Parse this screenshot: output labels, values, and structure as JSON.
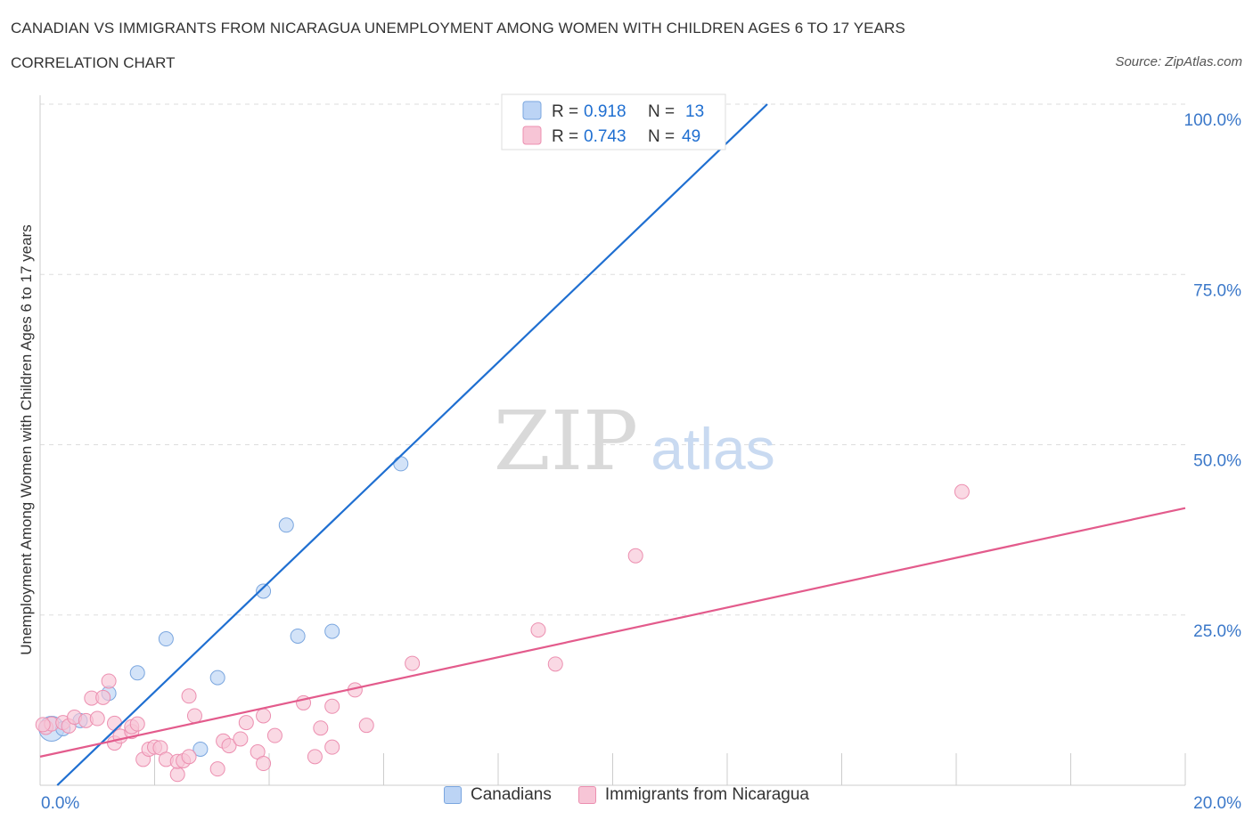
{
  "header": {
    "title": "CANADIAN VS IMMIGRANTS FROM NICARAGUA UNEMPLOYMENT AMONG WOMEN WITH CHILDREN AGES 6 TO 17 YEARS",
    "subtitle": "CORRELATION CHART",
    "source": "Source: ZipAtlas.com"
  },
  "watermark": {
    "zip": "ZIP",
    "atlas": "atlas"
  },
  "colors": {
    "blue": "#1f6fd1",
    "blue_fill": "#bcd4f5",
    "blue_stroke": "#7aa6df",
    "pink": "#e35b8c",
    "pink_fill": "#f7c5d6",
    "pink_stroke": "#ec8fb0",
    "axis_label": "#3b78c9",
    "grid": "#dddddd"
  },
  "stats_box": {
    "rows": [
      {
        "r_label": "R = ",
        "r_value": "0.918",
        "n_label": "N = ",
        "n_value": "13",
        "series": "Canadians"
      },
      {
        "r_label": "R = ",
        "r_value": "0.743",
        "n_label": "N = ",
        "n_value": "49",
        "series": "Immigrants from Nicaragua"
      }
    ]
  },
  "chart_data": {
    "type": "scatter",
    "title": "CANADIAN VS IMMIGRANTS FROM NICARAGUA UNEMPLOYMENT AMONG WOMEN WITH CHILDREN AGES 6 TO 17 YEARS",
    "xlabel": "",
    "ylabel": "Unemployment Among Women with Children Ages 6 to 17 years",
    "xlim": [
      0,
      20
    ],
    "ylim": [
      0,
      100
    ],
    "x_tick_labels": [
      {
        "value": 0,
        "label": "0.0%"
      },
      {
        "value": 20,
        "label": "20.0%"
      }
    ],
    "x_minor_ticks": [
      2,
      4,
      6,
      8,
      10,
      12,
      14,
      16,
      18,
      20
    ],
    "y_ticks": [
      {
        "value": 25,
        "label": "25.0%"
      },
      {
        "value": 50,
        "label": "50.0%"
      },
      {
        "value": 75,
        "label": "75.0%"
      },
      {
        "value": 100,
        "label": "100.0%"
      }
    ],
    "legend_position": "bottom-center",
    "series": [
      {
        "name": "Canadians",
        "color": "#1f6fd1",
        "points": [
          {
            "x": 0.2,
            "y": 8.3,
            "big": true
          },
          {
            "x": 0.4,
            "y": 8.3
          },
          {
            "x": 0.7,
            "y": 9.5
          },
          {
            "x": 1.2,
            "y": 13.5
          },
          {
            "x": 1.7,
            "y": 16.5
          },
          {
            "x": 2.2,
            "y": 21.5
          },
          {
            "x": 2.8,
            "y": 5.3
          },
          {
            "x": 3.1,
            "y": 15.8
          },
          {
            "x": 3.9,
            "y": 28.5
          },
          {
            "x": 4.3,
            "y": 38.2
          },
          {
            "x": 4.5,
            "y": 21.9
          },
          {
            "x": 5.1,
            "y": 22.6
          },
          {
            "x": 6.3,
            "y": 47.2
          }
        ],
        "trendline": {
          "x": [
            0.3,
            12.7
          ],
          "y": [
            0.0,
            100.0
          ]
        }
      },
      {
        "name": "Immigrants from Nicaragua",
        "color": "#e35b8c",
        "points": [
          {
            "x": 0.1,
            "y": 8.5
          },
          {
            "x": 0.2,
            "y": 9.0
          },
          {
            "x": 0.4,
            "y": 9.2
          },
          {
            "x": 0.5,
            "y": 8.7
          },
          {
            "x": 0.6,
            "y": 10.0
          },
          {
            "x": 0.8,
            "y": 9.5
          },
          {
            "x": 0.9,
            "y": 12.8
          },
          {
            "x": 1.0,
            "y": 9.8
          },
          {
            "x": 1.1,
            "y": 12.9
          },
          {
            "x": 1.2,
            "y": 15.3
          },
          {
            "x": 1.3,
            "y": 6.2
          },
          {
            "x": 1.3,
            "y": 9.1
          },
          {
            "x": 1.4,
            "y": 7.2
          },
          {
            "x": 1.6,
            "y": 7.9
          },
          {
            "x": 1.6,
            "y": 8.6
          },
          {
            "x": 1.7,
            "y": 9.0
          },
          {
            "x": 1.8,
            "y": 3.8
          },
          {
            "x": 1.9,
            "y": 5.3
          },
          {
            "x": 2.0,
            "y": 5.6
          },
          {
            "x": 2.1,
            "y": 5.5
          },
          {
            "x": 2.2,
            "y": 3.8
          },
          {
            "x": 2.4,
            "y": 1.6
          },
          {
            "x": 2.4,
            "y": 3.5
          },
          {
            "x": 2.5,
            "y": 3.6
          },
          {
            "x": 2.6,
            "y": 4.2
          },
          {
            "x": 2.6,
            "y": 13.1
          },
          {
            "x": 2.7,
            "y": 10.2
          },
          {
            "x": 3.1,
            "y": 2.4
          },
          {
            "x": 3.2,
            "y": 6.5
          },
          {
            "x": 3.3,
            "y": 5.8
          },
          {
            "x": 3.5,
            "y": 6.8
          },
          {
            "x": 3.6,
            "y": 9.2
          },
          {
            "x": 3.8,
            "y": 4.9
          },
          {
            "x": 3.9,
            "y": 10.2
          },
          {
            "x": 3.9,
            "y": 3.2
          },
          {
            "x": 4.1,
            "y": 7.3
          },
          {
            "x": 4.6,
            "y": 12.1
          },
          {
            "x": 4.8,
            "y": 4.2
          },
          {
            "x": 4.9,
            "y": 8.4
          },
          {
            "x": 5.1,
            "y": 5.6
          },
          {
            "x": 5.1,
            "y": 11.6
          },
          {
            "x": 5.5,
            "y": 14.0
          },
          {
            "x": 5.7,
            "y": 8.8
          },
          {
            "x": 6.5,
            "y": 17.9
          },
          {
            "x": 8.7,
            "y": 22.8
          },
          {
            "x": 9.0,
            "y": 17.8
          },
          {
            "x": 10.4,
            "y": 33.7
          },
          {
            "x": 16.1,
            "y": 43.1
          },
          {
            "x": 0.05,
            "y": 8.9
          }
        ],
        "trendline": {
          "x": [
            0.0,
            20.0
          ],
          "y": [
            4.2,
            40.7
          ]
        }
      }
    ]
  }
}
